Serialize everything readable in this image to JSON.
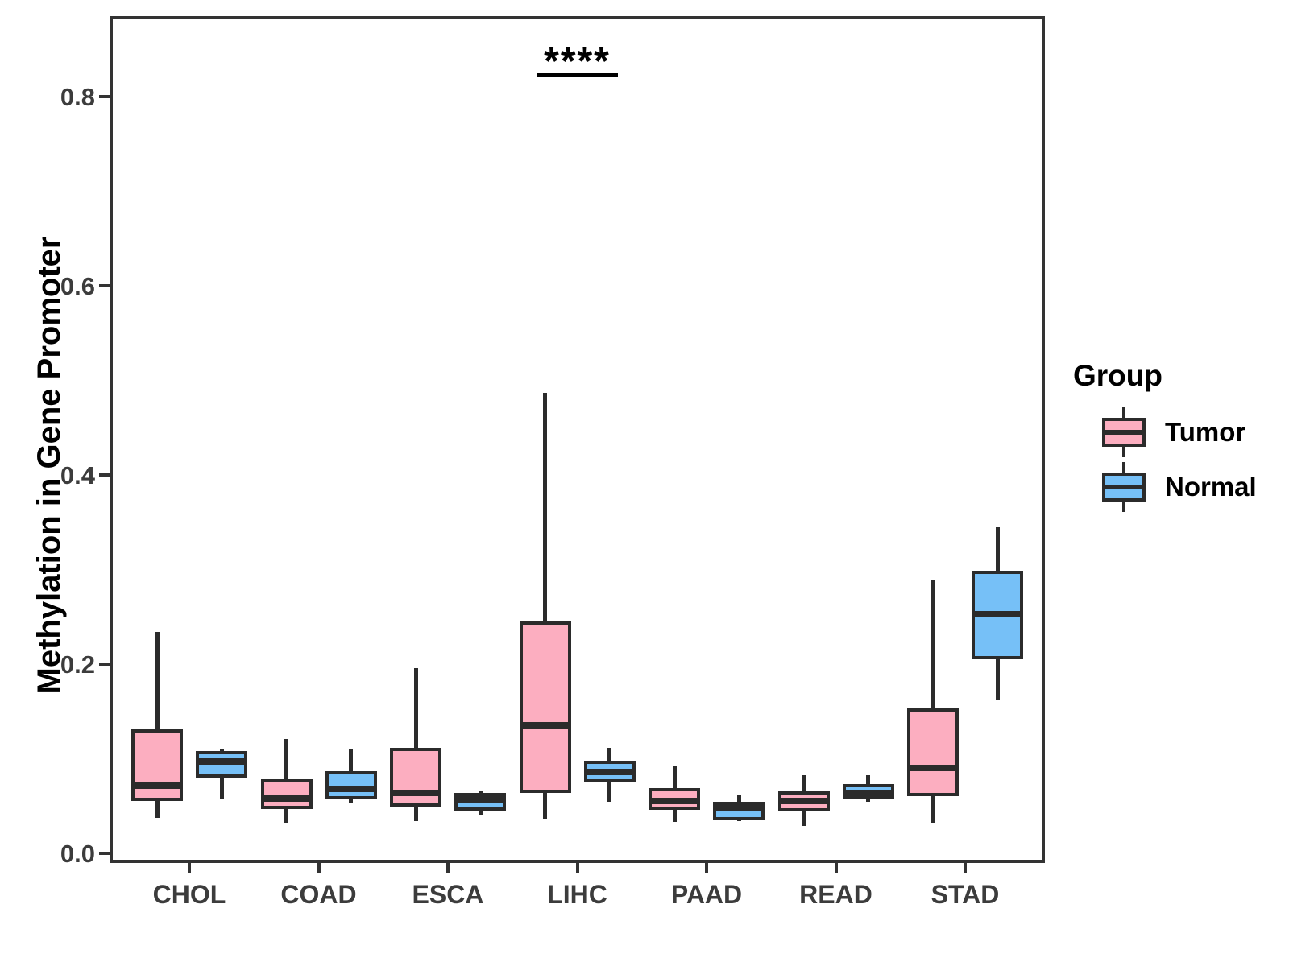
{
  "chart_data": {
    "type": "boxplot",
    "title": "",
    "xlabel": "",
    "ylabel": "Methylation in Gene Promoter",
    "categories": [
      "CHOL",
      "COAD",
      "ESCA",
      "LIHC",
      "PAAD",
      "READ",
      "STAD"
    ],
    "ytick_labels": [
      "0.0",
      "0.2",
      "0.4",
      "0.6",
      "0.8"
    ],
    "ytick_values": [
      0.0,
      0.2,
      0.4,
      0.6,
      0.8
    ],
    "ylim": [
      -0.007,
      0.882
    ],
    "grid": "off",
    "legend_position": "right",
    "stats_order": [
      "whisker_low",
      "q1",
      "median",
      "q3",
      "whisker_high"
    ],
    "series": [
      {
        "name": "Tumor",
        "fill": "#FCAEC0",
        "stats": {
          "CHOL": [
            0.037,
            0.055,
            0.071,
            0.131,
            0.234
          ],
          "COAD": [
            0.032,
            0.047,
            0.058,
            0.078,
            0.121
          ],
          "ESCA": [
            0.034,
            0.049,
            0.064,
            0.111,
            0.196
          ],
          "LIHC": [
            0.036,
            0.064,
            0.135,
            0.245,
            0.487
          ],
          "PAAD": [
            0.033,
            0.046,
            0.055,
            0.069,
            0.092
          ],
          "READ": [
            0.029,
            0.044,
            0.055,
            0.065,
            0.082
          ],
          "STAD": [
            0.032,
            0.06,
            0.09,
            0.153,
            0.289
          ]
        }
      },
      {
        "name": "Normal",
        "fill": "#76C0F7",
        "stats": {
          "CHOL": [
            0.057,
            0.08,
            0.097,
            0.108,
            0.11
          ],
          "COAD": [
            0.053,
            0.057,
            0.068,
            0.087,
            0.11
          ],
          "ESCA": [
            0.04,
            0.045,
            0.057,
            0.064,
            0.066
          ],
          "LIHC": [
            0.054,
            0.075,
            0.086,
            0.098,
            0.111
          ],
          "PAAD": [
            0.034,
            0.035,
            0.048,
            0.054,
            0.062
          ],
          "READ": [
            0.054,
            0.057,
            0.064,
            0.073,
            0.082
          ],
          "STAD": [
            0.162,
            0.205,
            0.253,
            0.299,
            0.345
          ]
        }
      }
    ],
    "annotations": [
      {
        "label": "****",
        "category": "LIHC",
        "bar_y": 0.823,
        "spans": [
          "Tumor",
          "Normal"
        ]
      }
    ]
  },
  "legend": {
    "title": "Group",
    "items": [
      {
        "label": "Tumor",
        "color": "#FCAEC0"
      },
      {
        "label": "Normal",
        "color": "#76C0F7"
      }
    ]
  },
  "colors": {
    "box_stroke": "#2B2B2B",
    "panel_border": "#333333",
    "axis_text": "#3C3C3C",
    "title_text": "#000000",
    "significance": "#000000"
  }
}
